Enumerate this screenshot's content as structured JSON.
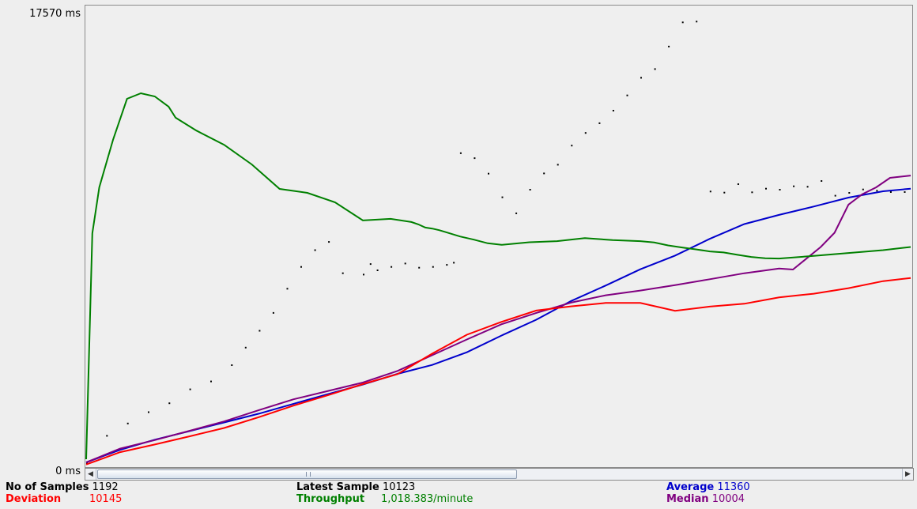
{
  "chart_data": {
    "type": "scatter",
    "title": "",
    "xlabel": "",
    "ylabel": "",
    "ylim": [
      0,
      17570
    ],
    "y_tick_labels": [
      "17570 ms",
      "0 ms"
    ],
    "legend": "none",
    "grid": false,
    "n_samples": 1192,
    "series": [
      {
        "name": "Data",
        "color": "#000000",
        "style": "dots",
        "x": [
          0,
          30,
          60,
          90,
          120,
          150,
          180,
          210,
          230,
          250,
          270,
          290,
          310,
          330,
          350,
          370,
          400,
          410,
          420,
          440,
          460,
          480,
          500,
          520,
          530,
          540,
          560,
          580,
          600,
          620,
          640,
          660,
          680,
          700,
          720,
          740,
          760,
          780,
          800,
          820,
          840,
          860,
          880,
          900,
          920,
          940,
          960,
          980,
          1000,
          1020,
          1040,
          1060,
          1080,
          1100,
          1120,
          1140,
          1160,
          1180
        ],
        "y": [
          170,
          1220,
          1690,
          2120,
          2460,
          2990,
          3290,
          3910,
          4580,
          5220,
          5900,
          6820,
          7650,
          8290,
          8600,
          7410,
          7360,
          7760,
          7520,
          7650,
          7780,
          7620,
          7650,
          7730,
          7810,
          11980,
          11790,
          11200,
          10300,
          9690,
          10590,
          11210,
          11540,
          12270,
          12750,
          13120,
          13600,
          14180,
          14850,
          15180,
          16040,
          16960,
          16990,
          10520,
          10480,
          10800,
          10490,
          10630,
          10590,
          10720,
          10700,
          10920,
          10360,
          10470,
          10600,
          10550,
          10500,
          10500
        ]
      },
      {
        "name": "Average",
        "color": "#0000cc",
        "style": "line",
        "x": [
          0,
          50,
          100,
          150,
          200,
          250,
          300,
          350,
          400,
          450,
          500,
          550,
          600,
          650,
          700,
          750,
          800,
          850,
          900,
          950,
          1000,
          1050,
          1100,
          1150,
          1192
        ],
        "y": [
          180,
          655,
          1045,
          1370,
          1700,
          2035,
          2410,
          2780,
          3140,
          3550,
          3890,
          4370,
          5010,
          5610,
          6320,
          6910,
          7530,
          8050,
          8690,
          9250,
          9600,
          9920,
          10260,
          10500,
          10600
        ]
      },
      {
        "name": "Median",
        "color": "#800080",
        "style": "line",
        "x": [
          0,
          50,
          100,
          150,
          200,
          250,
          300,
          350,
          400,
          450,
          500,
          550,
          600,
          650,
          700,
          750,
          800,
          850,
          900,
          950,
          1000,
          1020,
          1040,
          1060,
          1080,
          1100,
          1120,
          1140,
          1160,
          1192
        ],
        "y": [
          180,
          705,
          1030,
          1380,
          1740,
          2170,
          2580,
          2900,
          3220,
          3660,
          4260,
          4860,
          5440,
          5870,
          6260,
          6540,
          6720,
          6930,
          7150,
          7380,
          7560,
          7520,
          7950,
          8380,
          8920,
          9990,
          10390,
          10650,
          11010,
          11100
        ]
      },
      {
        "name": "Deviation",
        "color": "#ff0000",
        "style": "line",
        "x": [
          0,
          50,
          100,
          150,
          200,
          250,
          300,
          350,
          400,
          450,
          500,
          550,
          600,
          650,
          700,
          750,
          800,
          850,
          900,
          950,
          1000,
          1050,
          1100,
          1150,
          1192
        ],
        "y": [
          100,
          570,
          860,
          1170,
          1490,
          1900,
          2340,
          2740,
          3160,
          3540,
          4320,
          5040,
          5530,
          5960,
          6120,
          6250,
          6250,
          5950,
          6110,
          6220,
          6460,
          6600,
          6810,
          7080,
          7200
        ]
      },
      {
        "name": "Throughput",
        "color": "#008000",
        "style": "line",
        "x": [
          0,
          10,
          20,
          40,
          60,
          80,
          100,
          120,
          130,
          160,
          200,
          240,
          280,
          320,
          360,
          400,
          440,
          470,
          480,
          490,
          500,
          510,
          520,
          540,
          560,
          580,
          600,
          640,
          680,
          720,
          760,
          800,
          820,
          840,
          860,
          880,
          900,
          920,
          940,
          960,
          980,
          1000,
          1050,
          1100,
          1150,
          1192
        ],
        "y": [
          300,
          8900,
          10650,
          12470,
          14020,
          14230,
          14110,
          13720,
          13300,
          12810,
          12270,
          11520,
          10590,
          10440,
          10080,
          9390,
          9450,
          9330,
          9240,
          9120,
          9080,
          9020,
          8940,
          8780,
          8660,
          8520,
          8460,
          8560,
          8600,
          8720,
          8640,
          8600,
          8550,
          8440,
          8360,
          8290,
          8210,
          8170,
          8080,
          8000,
          7950,
          7940,
          8040,
          8150,
          8260,
          8380
        ]
      }
    ]
  },
  "labels": {
    "y_max": "17570  ms",
    "y_min": "0  ms"
  },
  "stats": {
    "samples_label": "No of Samples",
    "samples_value": "1192",
    "deviation_label": "Deviation",
    "deviation_value": "10145",
    "latest_label": "Latest Sample",
    "latest_value": "10123",
    "throughput_label": "Throughput",
    "throughput_value": "1,018.383/minute",
    "average_label": "Average",
    "average_value": "11360",
    "median_label": "Median",
    "median_value": "10004"
  },
  "colors": {
    "samples": "#000000",
    "deviation": "#ff0000",
    "throughput": "#008000",
    "average": "#0000cc",
    "median": "#800080"
  }
}
